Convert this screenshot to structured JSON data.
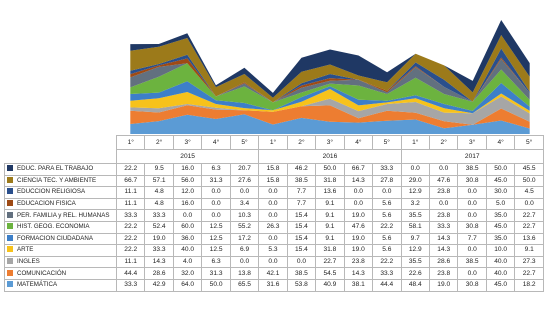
{
  "chart_data": {
    "type": "area",
    "stacked": true,
    "title": "",
    "xlabel": "",
    "ylabel": "",
    "years": [
      "2015",
      "2016",
      "2017"
    ],
    "categories": [
      "1°",
      "2°",
      "3°",
      "4°",
      "5°",
      "1°",
      "2°",
      "3°",
      "4°",
      "5°",
      "1°",
      "2°",
      "3°",
      "4°",
      "5°"
    ],
    "series": [
      {
        "name": "EDUC. PARA EL TRABAJO",
        "color": "#1f3864",
        "values": [
          "22.2",
          "9.5",
          "16.0",
          "6.3",
          "20.7",
          "15.8",
          "46.2",
          "50.0",
          "66.7",
          "33.3",
          "0.0",
          "0.0",
          "38.5",
          "50.0",
          "45.5"
        ]
      },
      {
        "name": "CIENCIA TEC. Y AMBIENTE",
        "color": "#9c7a1a",
        "values": [
          "66.7",
          "57.1",
          "56.0",
          "31.3",
          "27.6",
          "15.8",
          "38.5",
          "31.8",
          "14.3",
          "27.8",
          "29.0",
          "47.6",
          "30.8",
          "45.0",
          "50.0"
        ]
      },
      {
        "name": "EDUCCION RELIGIOSA",
        "color": "#2a4f8c",
        "values": [
          "11.1",
          "4.8",
          "12.0",
          "0.0",
          "0.0",
          "0.0",
          "7.7",
          "13.6",
          "0.0",
          "0.0",
          "12.9",
          "23.8",
          "0.0",
          "30.0",
          "4.5"
        ]
      },
      {
        "name": "EDUCACION FISICA",
        "color": "#9e4a14",
        "values": [
          "11.1",
          "4.8",
          "16.0",
          "0.0",
          "3.4",
          "0.0",
          "7.7",
          "9.1",
          "0.0",
          "5.6",
          "3.2",
          "0.0",
          "0.0",
          "5.0",
          "0.0"
        ]
      },
      {
        "name": "PER. FAMILIA y REL. HUMANAS",
        "color": "#62707f",
        "values": [
          "33.3",
          "33.3",
          "0.0",
          "0.0",
          "10.3",
          "0.0",
          "15.4",
          "9.1",
          "19.0",
          "5.6",
          "35.5",
          "23.8",
          "0.0",
          "35.0",
          "22.7"
        ]
      },
      {
        "name": "HIST. GEOG. ECONOMIA",
        "color": "#6cb33f",
        "values": [
          "22.2",
          "52.4",
          "60.0",
          "12.5",
          "55.2",
          "26.3",
          "15.4",
          "9.1",
          "47.6",
          "22.2",
          "58.1",
          "33.3",
          "30.8",
          "45.0",
          "22.7"
        ]
      },
      {
        "name": "FORMACION CIUDADANA",
        "color": "#3d7fc8",
        "values": [
          "22.2",
          "19.0",
          "36.0",
          "12.5",
          "17.2",
          "0.0",
          "15.4",
          "9.1",
          "19.0",
          "5.6",
          "9.7",
          "14.3",
          "7.7",
          "35.0",
          "13.6"
        ]
      },
      {
        "name": "ARTE",
        "color": "#f7c21b",
        "values": [
          "22.2",
          "33.3",
          "40.0",
          "12.5",
          "6.9",
          "5.3",
          "15.4",
          "31.8",
          "19.0",
          "5.6",
          "12.9",
          "14.3",
          "0.0",
          "10.0",
          "9.1"
        ]
      },
      {
        "name": "INGLES",
        "color": "#a6a6a6",
        "values": [
          "11.1",
          "14.3",
          "4.0",
          "6.3",
          "0.0",
          "0.0",
          "0.0",
          "22.7",
          "23.8",
          "22.2",
          "35.5",
          "28.6",
          "38.5",
          "40.0",
          "27.3"
        ]
      },
      {
        "name": "COMUNICACIÓN",
        "color": "#ed7d31",
        "values": [
          "44.4",
          "28.6",
          "32.0",
          "31.3",
          "13.8",
          "42.1",
          "38.5",
          "54.5",
          "14.3",
          "33.3",
          "22.6",
          "23.8",
          "0.0",
          "40.0",
          "22.7"
        ]
      },
      {
        "name": "MATEMÁTICA",
        "color": "#5b9bd5",
        "values": [
          "33.3",
          "42.9",
          "64.0",
          "50.0",
          "65.5",
          "31.6",
          "53.8",
          "40.9",
          "38.1",
          "44.4",
          "48.4",
          "19.0",
          "30.8",
          "45.0",
          "18.2"
        ]
      }
    ]
  }
}
